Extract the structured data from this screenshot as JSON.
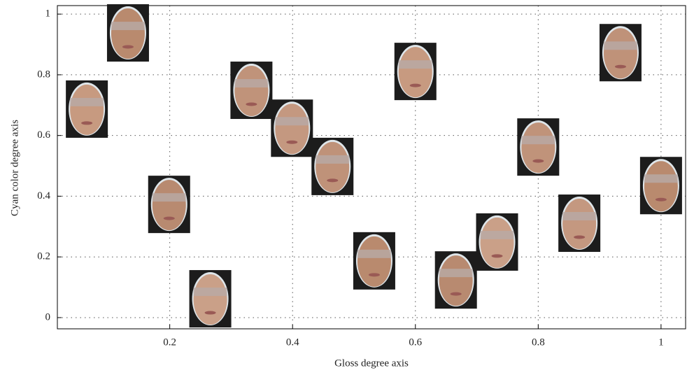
{
  "chart_data": {
    "type": "scatter",
    "xlabel": "Gloss degree axis",
    "ylabel": "Cyan color degree axis",
    "x": [
      0.132,
      0.065,
      0.199,
      0.266,
      0.333,
      0.399,
      0.465,
      0.533,
      0.6,
      0.666,
      0.733,
      0.8,
      0.867,
      0.934,
      1.0
    ],
    "values": [
      0.938,
      0.687,
      0.373,
      0.062,
      0.749,
      0.624,
      0.498,
      0.187,
      0.811,
      0.124,
      0.249,
      0.562,
      0.311,
      0.873,
      0.435
    ],
    "xlim": [
      0.017,
      1.04
    ],
    "ylim": [
      -0.037,
      1.028
    ],
    "xticks": [
      0.2,
      0.4,
      0.6,
      0.8,
      1
    ],
    "yticks": [
      0,
      0.2,
      0.4,
      0.6,
      0.8,
      1
    ],
    "grid": true
  }
}
